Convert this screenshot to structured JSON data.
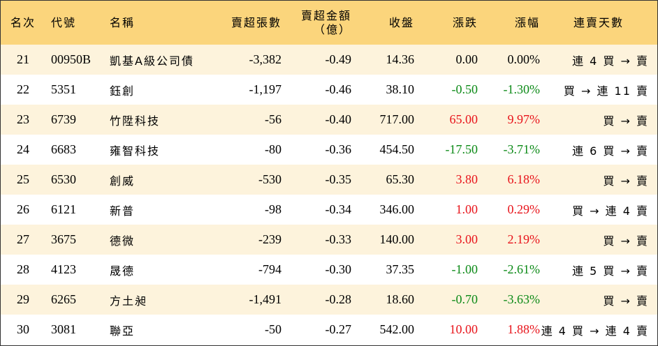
{
  "headers": {
    "rank": "名次",
    "code": "代號",
    "name": "名稱",
    "net_sell_lots": "賣超張數",
    "net_sell_amount_line1": "賣超金額",
    "net_sell_amount_line2": "（億）",
    "close": "收盤",
    "change": "漲跌",
    "change_pct": "漲幅",
    "streak": "連賣天數"
  },
  "rows": [
    {
      "rank": "21",
      "code": "00950B",
      "name": "凱基A級公司債",
      "lots": "-3,382",
      "amount": "-0.49",
      "close": "14.36",
      "change": "0.00",
      "pct": "0.00%",
      "direction": "neutral",
      "streak": "連 4 買 → 賣"
    },
    {
      "rank": "22",
      "code": "5351",
      "name": "鈺創",
      "lots": "-1,197",
      "amount": "-0.46",
      "close": "38.10",
      "change": "-0.50",
      "pct": "-1.30%",
      "direction": "down",
      "streak": "買 → 連 11 賣"
    },
    {
      "rank": "23",
      "code": "6739",
      "name": "竹陞科技",
      "lots": "-56",
      "amount": "-0.40",
      "close": "717.00",
      "change": "65.00",
      "pct": "9.97%",
      "direction": "up",
      "streak": "買 → 賣"
    },
    {
      "rank": "24",
      "code": "6683",
      "name": "雍智科技",
      "lots": "-80",
      "amount": "-0.36",
      "close": "454.50",
      "change": "-17.50",
      "pct": "-3.71%",
      "direction": "down",
      "streak": "連 6 買 → 賣"
    },
    {
      "rank": "25",
      "code": "6530",
      "name": "創威",
      "lots": "-530",
      "amount": "-0.35",
      "close": "65.30",
      "change": "3.80",
      "pct": "6.18%",
      "direction": "up",
      "streak": "買 → 賣"
    },
    {
      "rank": "26",
      "code": "6121",
      "name": "新普",
      "lots": "-98",
      "amount": "-0.34",
      "close": "346.00",
      "change": "1.00",
      "pct": "0.29%",
      "direction": "up",
      "streak": "買 → 連 4 賣"
    },
    {
      "rank": "27",
      "code": "3675",
      "name": "德微",
      "lots": "-239",
      "amount": "-0.33",
      "close": "140.00",
      "change": "3.00",
      "pct": "2.19%",
      "direction": "up",
      "streak": "買 → 賣"
    },
    {
      "rank": "28",
      "code": "4123",
      "name": "晟德",
      "lots": "-794",
      "amount": "-0.30",
      "close": "37.35",
      "change": "-1.00",
      "pct": "-2.61%",
      "direction": "down",
      "streak": "連 5 買 → 賣"
    },
    {
      "rank": "29",
      "code": "6265",
      "name": "方土昶",
      "lots": "-1,491",
      "amount": "-0.28",
      "close": "18.60",
      "change": "-0.70",
      "pct": "-3.63%",
      "direction": "down",
      "streak": "買 → 賣"
    },
    {
      "rank": "30",
      "code": "3081",
      "name": "聯亞",
      "lots": "-50",
      "amount": "-0.27",
      "close": "542.00",
      "change": "10.00",
      "pct": "1.88%",
      "direction": "up",
      "streak": "連 4 買 → 連 4 賣"
    }
  ],
  "colors": {
    "header_bg": "#fbd57c",
    "odd_row_bg": "#fdf3dc",
    "even_row_bg": "#ffffff",
    "up": "#e8141b",
    "down": "#0c8a17",
    "neutral": "#000000"
  }
}
